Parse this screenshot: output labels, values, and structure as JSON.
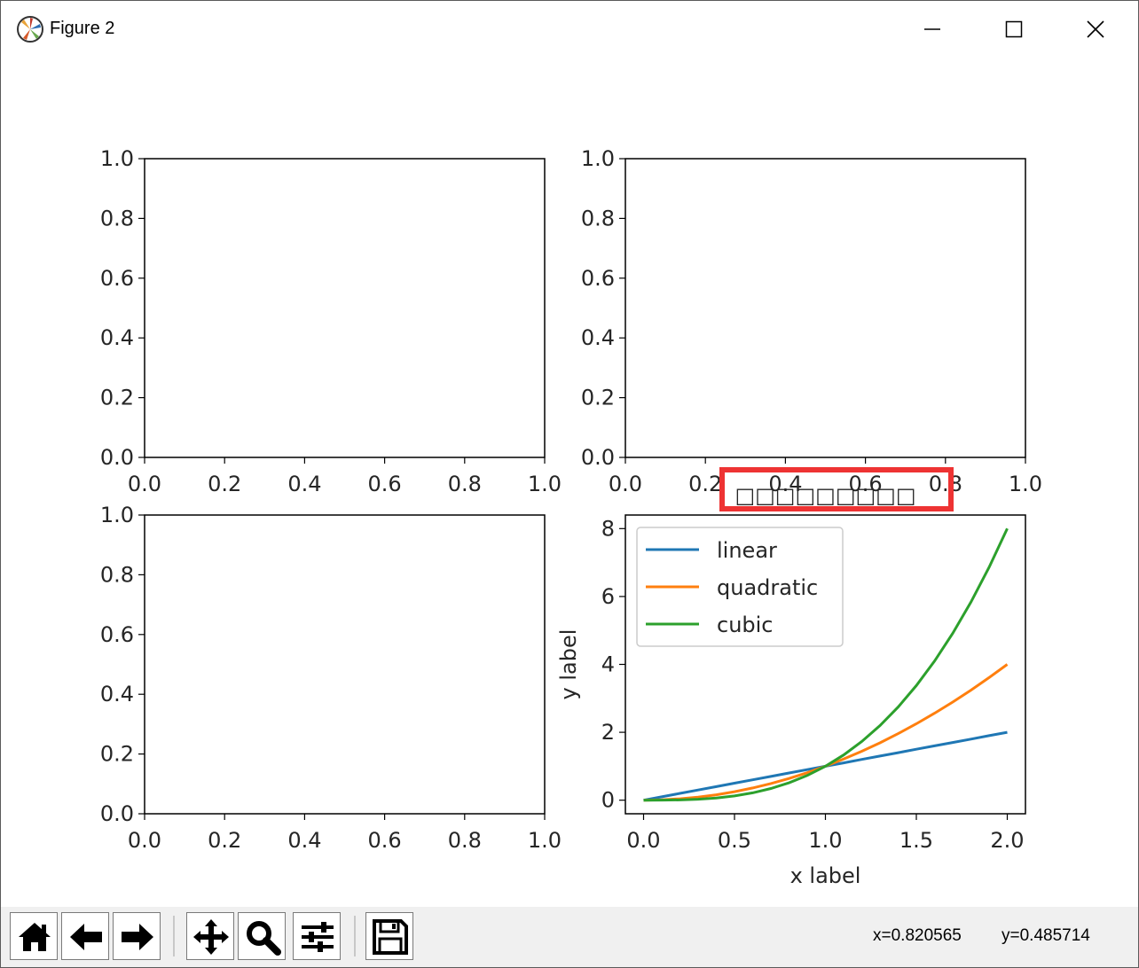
{
  "window": {
    "title": "Figure 2",
    "app_icon": "matplotlib-logo-icon",
    "controls": [
      "minimize-icon",
      "maximize-icon",
      "close-icon"
    ]
  },
  "chart_data": [
    {
      "type": "line",
      "empty": true,
      "xlim": [
        0.0,
        1.0
      ],
      "ylim": [
        0.0,
        1.0
      ],
      "xticks": [
        "0.0",
        "0.2",
        "0.4",
        "0.6",
        "0.8",
        "1.0"
      ],
      "yticks": [
        "0.0",
        "0.2",
        "0.4",
        "0.6",
        "0.8",
        "1.0"
      ],
      "series": []
    },
    {
      "type": "line",
      "empty": true,
      "xlim": [
        0.0,
        1.0
      ],
      "ylim": [
        0.0,
        1.0
      ],
      "xticks": [
        "0.0",
        "0.2",
        "0.4",
        "0.6",
        "0.8",
        "1.0"
      ],
      "yticks": [
        "0.0",
        "0.2",
        "0.4",
        "0.6",
        "0.8",
        "1.0"
      ],
      "series": []
    },
    {
      "type": "line",
      "empty": true,
      "xlim": [
        0.0,
        1.0
      ],
      "ylim": [
        0.0,
        1.0
      ],
      "xticks": [
        "0.0",
        "0.2",
        "0.4",
        "0.6",
        "0.8",
        "1.0"
      ],
      "yticks": [
        "0.0",
        "0.2",
        "0.4",
        "0.6",
        "0.8",
        "1.0"
      ],
      "series": []
    },
    {
      "type": "line",
      "title": "□□□□□□□□□",
      "title_highlight_color": "#ee3333",
      "xlabel": "x label",
      "ylabel": "y label",
      "xlim": [
        -0.1,
        2.1
      ],
      "ylim": [
        -0.4,
        8.4
      ],
      "xticks": [
        "0.0",
        "0.5",
        "1.0",
        "1.5",
        "2.0"
      ],
      "yticks": [
        "0",
        "2",
        "4",
        "6",
        "8"
      ],
      "legend_position": "upper-left",
      "x": [
        0.0,
        0.1,
        0.2,
        0.3,
        0.4,
        0.5,
        0.6,
        0.7,
        0.8,
        0.9,
        1.0,
        1.1,
        1.2,
        1.3,
        1.4,
        1.5,
        1.6,
        1.7,
        1.8,
        1.9,
        2.0
      ],
      "series": [
        {
          "name": "linear",
          "color": "#1f77b4",
          "values": [
            0.0,
            0.1,
            0.2,
            0.3,
            0.4,
            0.5,
            0.6,
            0.7,
            0.8,
            0.9,
            1.0,
            1.1,
            1.2,
            1.3,
            1.4,
            1.5,
            1.6,
            1.7,
            1.8,
            1.9,
            2.0
          ]
        },
        {
          "name": "quadratic",
          "color": "#ff7f0e",
          "values": [
            0.0,
            0.01,
            0.04,
            0.09,
            0.16,
            0.25,
            0.36,
            0.49,
            0.64,
            0.81,
            1.0,
            1.21,
            1.44,
            1.69,
            1.96,
            2.25,
            2.56,
            2.89,
            3.24,
            3.61,
            4.0
          ]
        },
        {
          "name": "cubic",
          "color": "#2ca02c",
          "values": [
            0.0,
            0.001,
            0.008,
            0.027,
            0.064,
            0.125,
            0.216,
            0.343,
            0.512,
            0.729,
            1.0,
            1.331,
            1.728,
            2.197,
            2.744,
            3.375,
            4.096,
            4.913,
            5.832,
            6.859,
            8.0
          ]
        }
      ]
    }
  ],
  "toolbar": {
    "buttons": [
      {
        "name": "home-button",
        "icon": "home-icon"
      },
      {
        "name": "back-button",
        "icon": "arrow-left-icon"
      },
      {
        "name": "forward-button",
        "icon": "arrow-right-icon"
      },
      {
        "name": "pan-button",
        "icon": "move-icon"
      },
      {
        "name": "zoom-button",
        "icon": "magnifier-icon"
      },
      {
        "name": "configure-subplots-button",
        "icon": "sliders-icon"
      },
      {
        "name": "save-button",
        "icon": "floppy-disk-icon"
      }
    ],
    "coord_x": "x=0.820565",
    "coord_y": "y=0.485714"
  }
}
